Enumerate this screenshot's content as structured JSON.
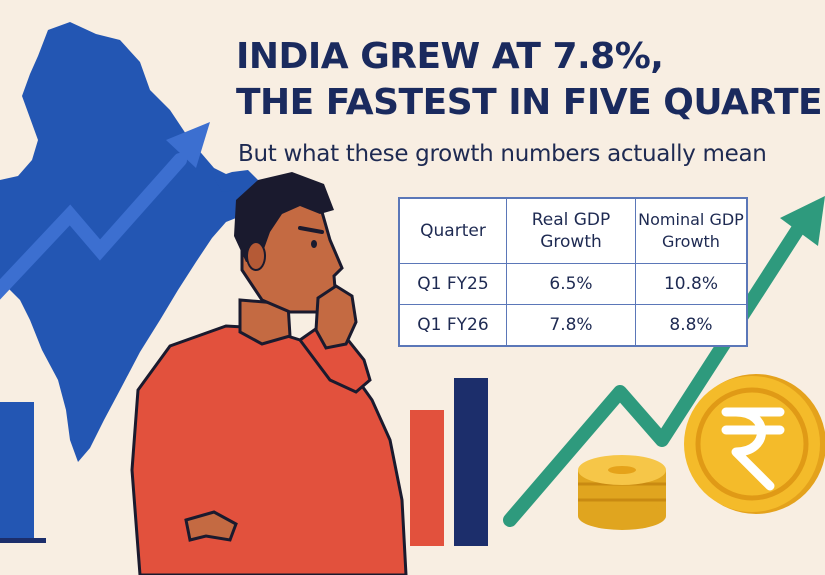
{
  "headline": {
    "line1": "INDIA GREW AT 7.8%,",
    "line2": "THE FASTEST IN FIVE QUARTERS",
    "subtitle": "But what these growth numbers actually mean"
  },
  "gdp_table": {
    "headers": [
      "Quarter",
      "Real GDP Growth",
      "Nominal GDP Growth"
    ],
    "rows": [
      [
        "Q1 FY25",
        "6.5%",
        "10.8%"
      ],
      [
        "Q1 FY26",
        "7.8%",
        "8.8%"
      ]
    ]
  },
  "colors": {
    "background": "#f8eee2",
    "map_blue": "#2356b3",
    "navy_text": "#1a2a5e",
    "table_border": "#5b77b8",
    "shirt_red": "#e2513d",
    "bar_yellow": "#f3b52a",
    "bar_red": "#e2513d",
    "bar_navy": "#1c2e6b",
    "trend_green": "#2e9a7d",
    "coin_gold": "#f4bb2a"
  },
  "icons": [
    "india-map-icon",
    "thinking-man-icon",
    "bar-chart-icon",
    "up-trend-arrow-icon",
    "rupee-coin-icon",
    "coin-stack-icon"
  ]
}
